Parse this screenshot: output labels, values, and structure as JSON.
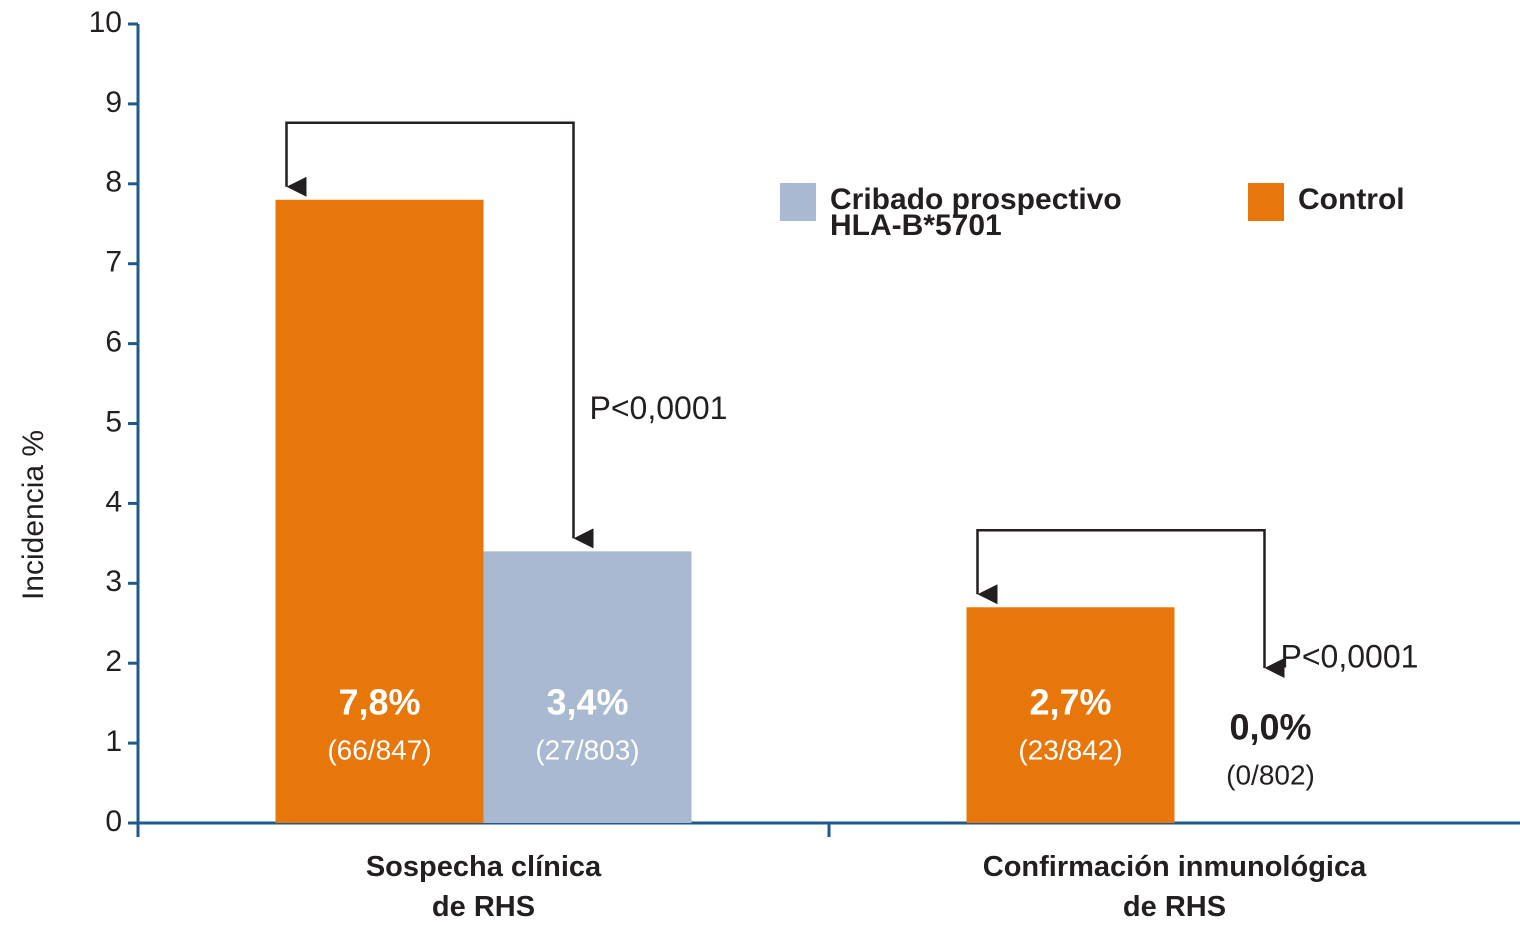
{
  "chart_data": {
    "type": "bar",
    "y_label": "Incidencia %",
    "categories": [
      "Sospecha clínica\nde RHS",
      "Confirmación inmunológica\nde RHS"
    ],
    "series": [
      {
        "name": "Control",
        "color": "#e8770b",
        "values": [
          7.8,
          2.7
        ],
        "value_labels": [
          "7,8%",
          "2,7%"
        ],
        "counts": [
          "(66/847)",
          "(23/842)"
        ]
      },
      {
        "name": "Cribado prospectivo\nHLA-B*5701",
        "color": "#a8b9d1",
        "values": [
          3.4,
          0.0
        ],
        "value_labels": [
          "3,4%",
          "0,0%"
        ],
        "counts": [
          "(27/803)",
          "(0/802)"
        ]
      }
    ],
    "annotations": [
      "P<0,0001",
      "P<0,0001"
    ],
    "ylim": [
      0,
      10
    ],
    "yticks": [
      0,
      1,
      2,
      3,
      4,
      5,
      6,
      7,
      8,
      9,
      10
    ]
  }
}
